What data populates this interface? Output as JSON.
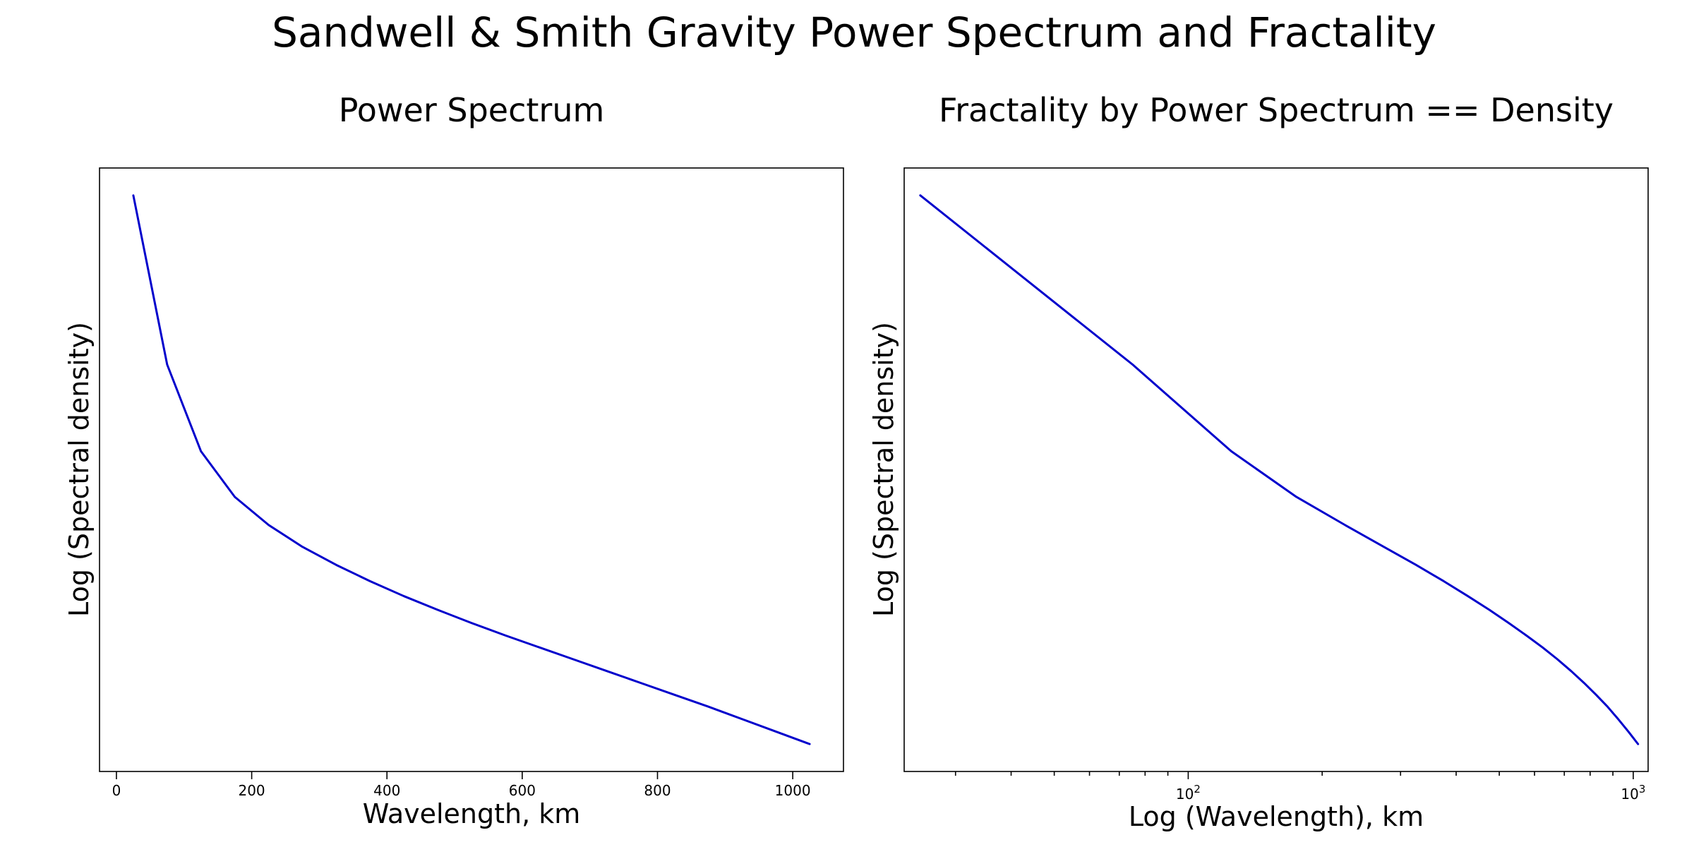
{
  "suptitle": "Sandwell & Smith Gravity Power Spectrum and Fractality",
  "series_color": "#0000cc",
  "chart_data": [
    {
      "type": "line",
      "title": "Power Spectrum",
      "xlabel": "Wavelength, km",
      "ylabel": "Log (Spectral density)",
      "xscale": "linear",
      "xlim": [
        -25,
        1075
      ],
      "xticks": [
        0,
        200,
        400,
        600,
        800,
        1000
      ],
      "xtick_labels": [
        "0",
        "200",
        "400",
        "600",
        "800",
        "1000"
      ],
      "y_ticks_shown": false,
      "grid": false,
      "x": [
        25,
        75,
        125,
        175,
        225,
        275,
        325,
        375,
        425,
        475,
        525,
        575,
        625,
        675,
        725,
        775,
        825,
        875,
        925,
        975,
        1025
      ],
      "y": [
        0.955,
        0.684,
        0.545,
        0.472,
        0.427,
        0.392,
        0.363,
        0.337,
        0.313,
        0.291,
        0.27,
        0.25,
        0.231,
        0.212,
        0.193,
        0.174,
        0.155,
        0.136,
        0.116,
        0.096,
        0.076
      ]
    },
    {
      "type": "line",
      "title": "Fractality by Power Spectrum == Density",
      "xlabel": "Log (Wavelength), km",
      "ylabel": "Log (Spectral density)",
      "xscale": "log",
      "xlim": [
        23,
        1080
      ],
      "xticks": [
        100,
        1000
      ],
      "xtick_labels": [
        "10^2",
        "10^3"
      ],
      "y_ticks_shown": false,
      "grid": false,
      "x": [
        25,
        75,
        125,
        175,
        225,
        275,
        325,
        375,
        425,
        475,
        525,
        575,
        625,
        675,
        725,
        775,
        825,
        875,
        925,
        975,
        1025
      ],
      "y": [
        0.955,
        0.684,
        0.545,
        0.472,
        0.427,
        0.392,
        0.363,
        0.337,
        0.313,
        0.291,
        0.27,
        0.25,
        0.231,
        0.212,
        0.193,
        0.174,
        0.155,
        0.136,
        0.116,
        0.096,
        0.076
      ]
    }
  ]
}
